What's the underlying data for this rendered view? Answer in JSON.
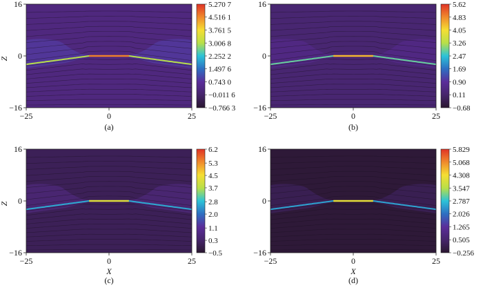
{
  "figure": {
    "panels": [
      {
        "caption": "(a)",
        "ylabel": "Z",
        "xlabel": ""
      },
      {
        "caption": "(b)",
        "ylabel": "",
        "xlabel": ""
      },
      {
        "caption": "(c)",
        "ylabel": "Z",
        "xlabel": "X"
      },
      {
        "caption": "(d)",
        "ylabel": "",
        "xlabel": "X"
      }
    ]
  },
  "chart_data": [
    {
      "type": "heatmap",
      "title": "",
      "xlim": [
        -25,
        25
      ],
      "ylim": [
        -16,
        16
      ],
      "x_ticks": [
        "−25",
        "0",
        "25"
      ],
      "y_ticks": [
        "16",
        "0",
        "−16"
      ],
      "colorbar_ticks": [
        5.2707,
        4.5161,
        3.7615,
        3.0068,
        2.2522,
        1.4976,
        0.743,
        -0.0116,
        -0.7663
      ],
      "colorbar_tick_labels": [
        "5.270 7",
        "4.516 1",
        "3.761 5",
        "3.006 8",
        "2.252 2",
        "1.497 6",
        "0.743 0",
        "−0.011 6",
        "−0.766 3"
      ],
      "colormap": [
        "#2a1730",
        "#46256b",
        "#5b2d9a",
        "#2e6fc2",
        "#2cc3d8",
        "#b8df48",
        "#f5de33",
        "#f08a2c",
        "#e03326"
      ],
      "background_level": 0.3,
      "sheet_level": 3.0,
      "island_level": 0.9
    },
    {
      "type": "heatmap",
      "title": "",
      "xlim": [
        -25,
        25
      ],
      "ylim": [
        -16,
        16
      ],
      "x_ticks": [
        "−25",
        "0",
        "25"
      ],
      "y_ticks": [
        "16",
        "0",
        "−16"
      ],
      "colorbar_ticks": [
        5.62,
        4.83,
        4.05,
        3.26,
        2.47,
        1.69,
        0.9,
        0.11,
        -0.68
      ],
      "colorbar_tick_labels": [
        "5.62",
        "4.83",
        "4.05",
        "3.26",
        "2.47",
        "1.69",
        "0.90",
        "0.11",
        "−0.68"
      ],
      "colormap": [
        "#2a1730",
        "#46256b",
        "#5b2d9a",
        "#2e6fc2",
        "#2cc3d8",
        "#b8df48",
        "#f5de33",
        "#f08a2c",
        "#e03326"
      ],
      "background_level": 0.2,
      "sheet_level": 2.8,
      "island_level": 0.6
    },
    {
      "type": "heatmap",
      "title": "",
      "xlim": [
        -25,
        25
      ],
      "ylim": [
        -16,
        16
      ],
      "x_ticks": [
        "−25",
        "0",
        "25"
      ],
      "y_ticks": [
        "16",
        "0",
        "−16"
      ],
      "colorbar_ticks": [
        6.2,
        5.3,
        4.5,
        3.7,
        2.8,
        2.0,
        1.1,
        0.3,
        -0.5
      ],
      "colorbar_tick_labels": [
        "6.2",
        "5.3",
        "4.5",
        "3.7",
        "2.8",
        "2.0",
        "1.1",
        "0.3",
        "−0.5"
      ],
      "colormap": [
        "#2a1730",
        "#46256b",
        "#5b2d9a",
        "#2e6fc2",
        "#2cc3d8",
        "#b8df48",
        "#f5de33",
        "#f08a2c",
        "#e03326"
      ],
      "background_level": 0.05,
      "sheet_level": 2.6,
      "island_level": 0.6
    },
    {
      "type": "heatmap",
      "title": "",
      "xlim": [
        -25,
        25
      ],
      "ylim": [
        -16,
        16
      ],
      "x_ticks": [
        "−25",
        "0",
        "25"
      ],
      "y_ticks": [
        "16",
        "0",
        "−16"
      ],
      "colorbar_ticks": [
        5.829,
        5.068,
        4.308,
        3.547,
        2.787,
        2.026,
        1.265,
        0.505,
        -0.256
      ],
      "colorbar_tick_labels": [
        "5.829",
        "5.068",
        "4.308",
        "3.547",
        "2.787",
        "2.026",
        "1.265",
        "0.505",
        "−0.256"
      ],
      "colormap": [
        "#2a1730",
        "#46256b",
        "#5b2d9a",
        "#2e6fc2",
        "#2cc3d8",
        "#b8df48",
        "#f5de33",
        "#f08a2c",
        "#e03326"
      ],
      "background_level": -0.15,
      "sheet_level": 2.5,
      "island_level": 0.3
    }
  ]
}
